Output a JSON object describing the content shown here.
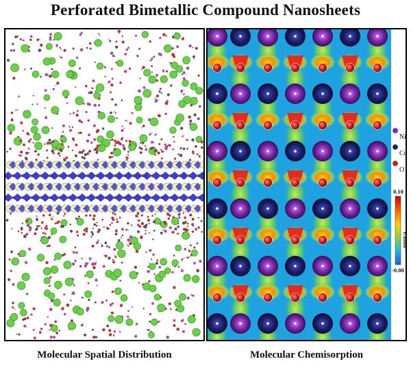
{
  "title": "Perforated  Bimetallic Compound Nanosheets",
  "left_panel": {
    "caption": "Molecular Spatial Distribution"
  },
  "right_panel": {
    "caption": "Molecular Chemisorption",
    "legend": [
      {
        "label": "Ni",
        "color": "#7a2aa8"
      },
      {
        "label": "Co",
        "color": "#1a1f6b"
      },
      {
        "label": "O",
        "color": "#d01818"
      }
    ],
    "colorbar": {
      "max": "0.10",
      "min": "-0.08",
      "unit_label": "e/Bohr³",
      "colors": [
        "#d20000",
        "#ff6a00",
        "#ffd200",
        "#8fd23a",
        "#27b4e6",
        "#1f5fd6"
      ]
    }
  },
  "colors": {
    "molecule_green": "#6ed04a",
    "molecule_magenta": "#b04aa8",
    "molecule_red": "#c0302a",
    "sheet_blue": "#3a3fc8",
    "sheet_yellow": "#f5eec0",
    "background_blue": "#1fa3e0"
  }
}
